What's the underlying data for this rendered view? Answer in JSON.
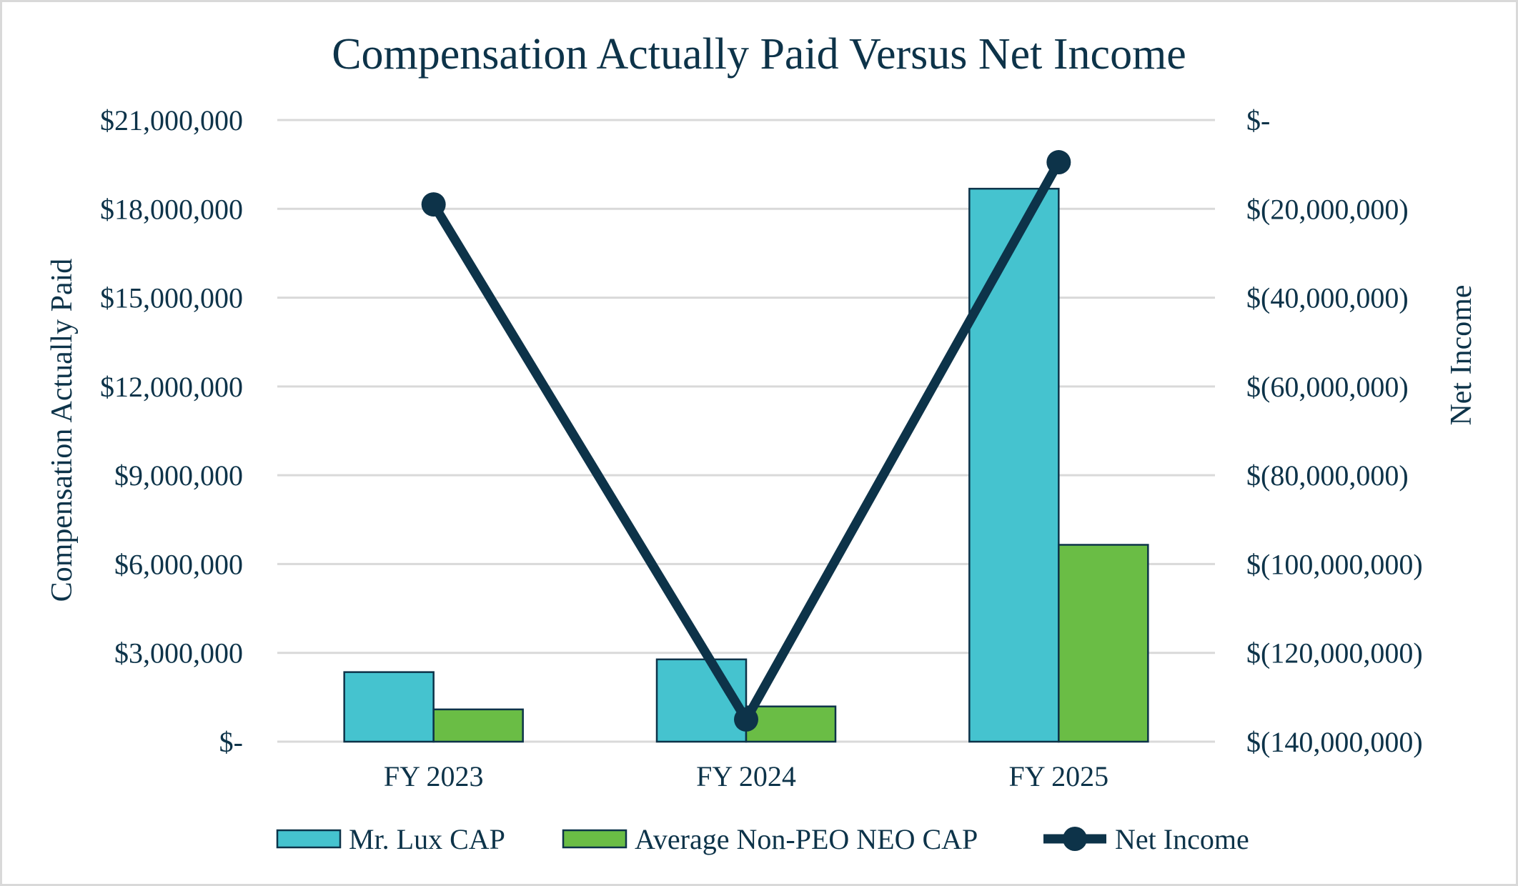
{
  "chart_data": {
    "type": "bar",
    "title": "Compensation Actually Paid Versus Net Income",
    "categories": [
      "FY 2023",
      "FY 2024",
      "FY 2025"
    ],
    "y_left": {
      "label": "Compensation Actually Paid",
      "ylim": [
        0,
        21000000
      ],
      "ticks": [
        0,
        3000000,
        6000000,
        9000000,
        12000000,
        15000000,
        18000000,
        21000000
      ],
      "tick_labels": [
        "$-",
        "$3,000,000",
        "$6,000,000",
        "$9,000,000",
        "$12,000,000",
        "$15,000,000",
        "$18,000,000",
        "$21,000,000"
      ]
    },
    "y_right": {
      "label": "Net Income",
      "ylim": [
        -140000000,
        0
      ],
      "ticks": [
        0,
        -20000000,
        -40000000,
        -60000000,
        -80000000,
        -100000000,
        -120000000,
        -140000000
      ],
      "tick_labels": [
        "$-",
        "$(20,000,000)",
        "$(40,000,000)",
        "$(60,000,000)",
        "$(80,000,000)",
        "$(100,000,000)",
        "$(120,000,000)",
        "$(140,000,000)"
      ]
    },
    "series": [
      {
        "name": "Mr. Lux CAP",
        "type": "bar",
        "axis": "left",
        "color": "#45c3cf",
        "values": [
          2350000,
          2780000,
          18680000
        ]
      },
      {
        "name": "Average Non-PEO NEO CAP",
        "type": "bar",
        "axis": "left",
        "color": "#6abd45",
        "values": [
          1090000,
          1190000,
          6650000
        ]
      },
      {
        "name": "Net Income",
        "type": "line",
        "axis": "right",
        "color": "#0d3349",
        "values": [
          -19000000,
          -135000000,
          -9500000
        ]
      }
    ],
    "grid": true,
    "legend_position": "bottom"
  }
}
